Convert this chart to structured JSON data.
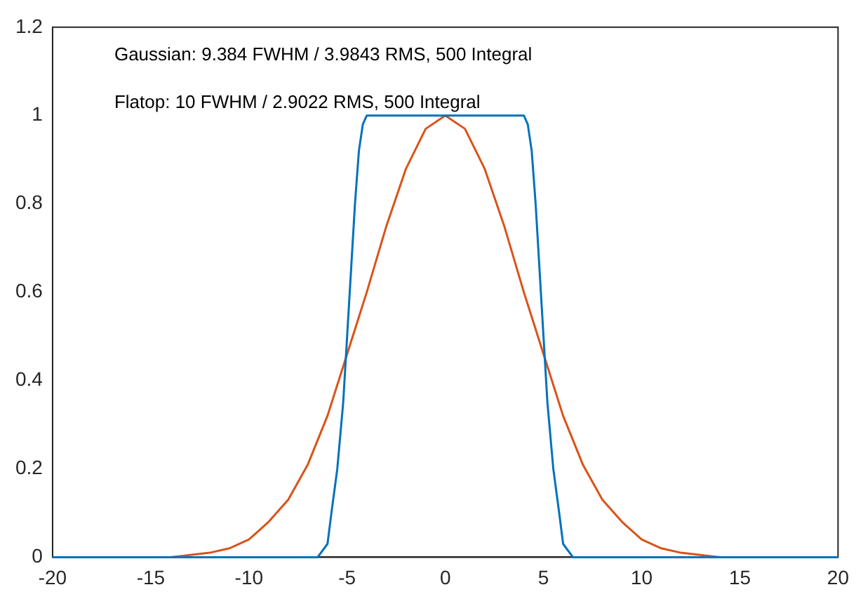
{
  "chart_data": {
    "type": "line",
    "annotations": [
      "Gaussian: 9.384 FWHM / 3.9843 RMS, 500 Integral",
      "Flatop: 10 FWHM / 2.9022 RMS, 500 Integral"
    ],
    "series": [
      {
        "color": "#0072bd",
        "x": [
          -20,
          -7,
          -6.5,
          -6,
          -5.8,
          -5.5,
          -5.2,
          -5,
          -4.8,
          -4.6,
          -4.4,
          -4.2,
          -4,
          4,
          4.2,
          4.4,
          4.6,
          4.8,
          5,
          5.2,
          5.5,
          5.8,
          6,
          6.5,
          7,
          20
        ],
        "values": [
          0,
          0,
          0,
          0.03,
          0.1,
          0.2,
          0.35,
          0.5,
          0.65,
          0.8,
          0.92,
          0.98,
          1,
          1,
          0.98,
          0.92,
          0.8,
          0.65,
          0.5,
          0.35,
          0.2,
          0.1,
          0.03,
          0,
          0,
          0
        ]
      },
      {
        "color": "#d95319",
        "x": [
          -20,
          -14,
          -13,
          -12,
          -11,
          -10,
          -9,
          -8,
          -7,
          -6,
          -5,
          -4,
          -3,
          -2,
          -1,
          0,
          1,
          2,
          3,
          4,
          5,
          6,
          7,
          8,
          9,
          10,
          11,
          12,
          13,
          14,
          20
        ],
        "values": [
          0,
          0,
          0.005,
          0.01,
          0.02,
          0.04,
          0.08,
          0.13,
          0.21,
          0.32,
          0.46,
          0.6,
          0.75,
          0.88,
          0.97,
          1,
          0.97,
          0.88,
          0.75,
          0.6,
          0.46,
          0.32,
          0.21,
          0.13,
          0.08,
          0.04,
          0.02,
          0.01,
          0.005,
          0,
          0
        ]
      }
    ],
    "xlim": [
      -20,
      20
    ],
    "xticks": [
      -20,
      -15,
      -10,
      -5,
      0,
      5,
      10,
      15,
      20
    ],
    "ylim": [
      0,
      1.2
    ],
    "yticks": [
      0,
      0.2,
      0.4,
      0.6,
      0.8,
      1,
      1.2
    ],
    "grid": false,
    "legend": false
  }
}
